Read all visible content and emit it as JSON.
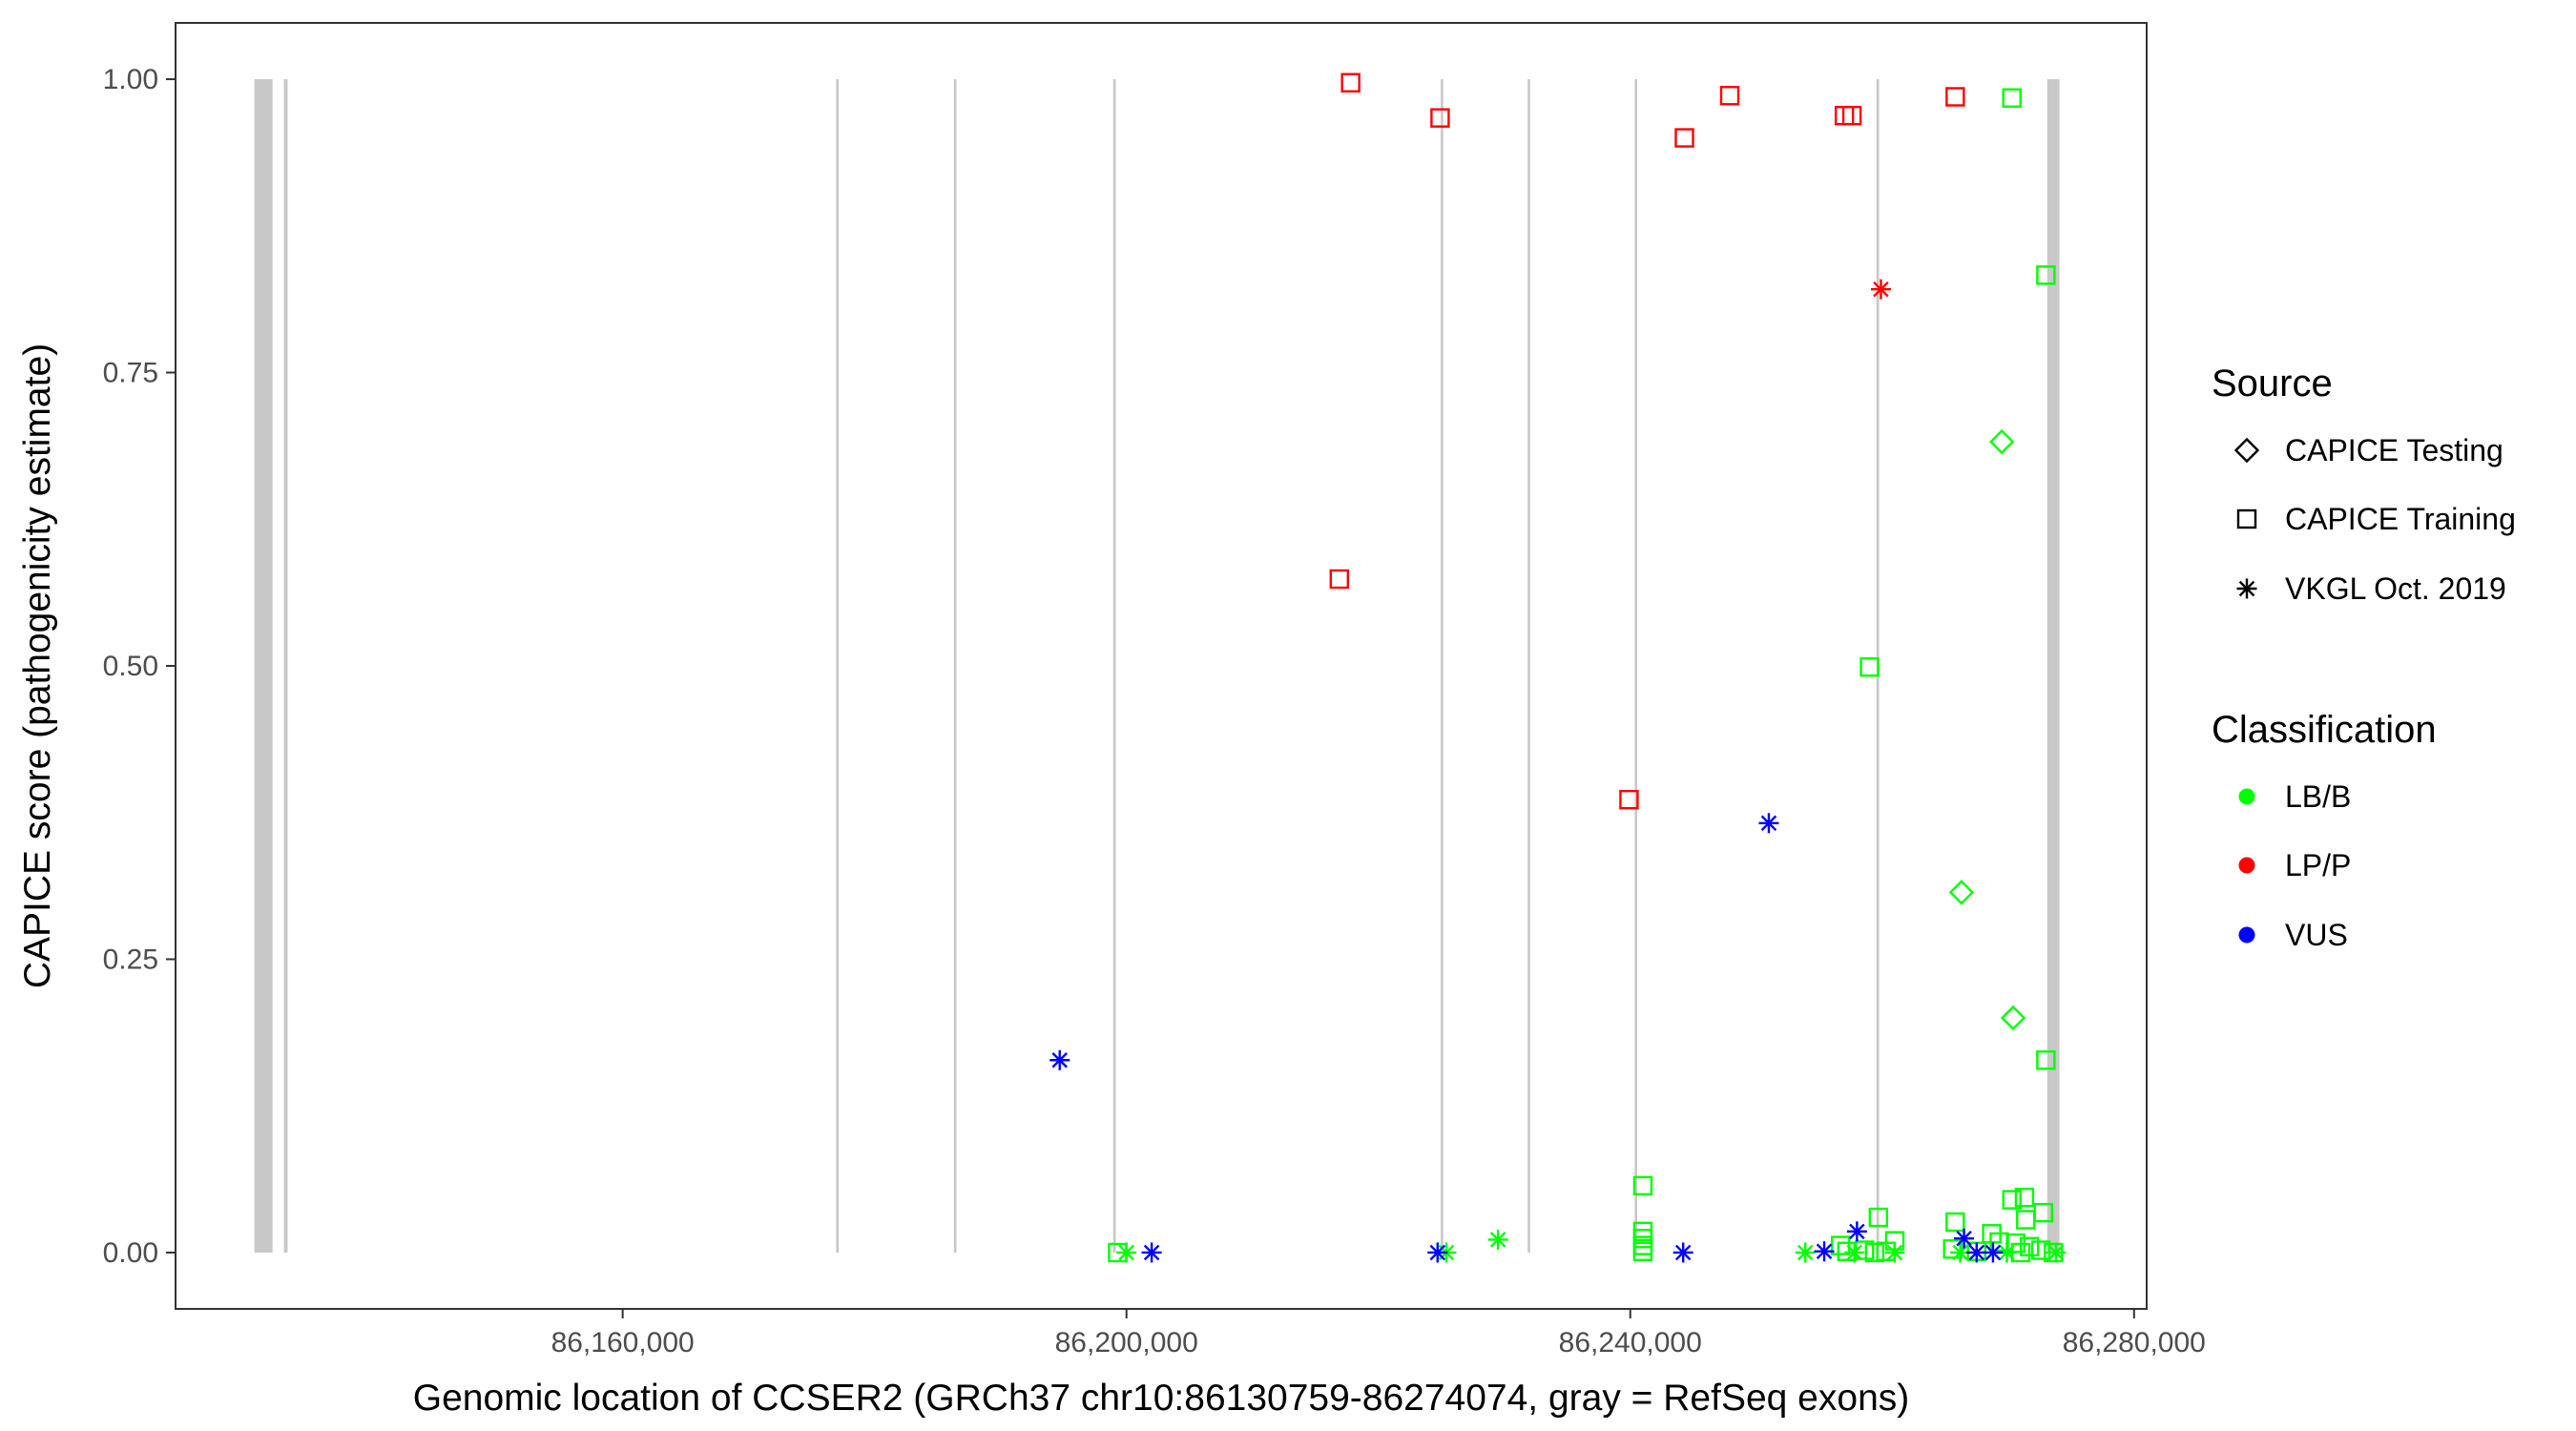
{
  "chart_data": {
    "type": "scatter",
    "xlabel": "Genomic location of CCSER2 (GRCh37 chr10:86130759-86274074, gray = RefSeq exons)",
    "ylabel": "CAPICE score (pathogenicity estimate)",
    "xlim": [
      86124500,
      86281000
    ],
    "ylim": [
      -0.048,
      1.048
    ],
    "x_ticks": [
      86160000,
      86200000,
      86240000,
      86280000
    ],
    "x_tick_labels": [
      "86,160,000",
      "86,200,000",
      "86,240,000",
      "86,280,000"
    ],
    "y_ticks": [
      0,
      0.25,
      0.5,
      0.75,
      1
    ],
    "y_tick_labels": [
      "0.00",
      "0.25",
      "0.50",
      "0.75",
      "1.00"
    ],
    "grid": false,
    "exons": [
      {
        "start": 86130759,
        "end": 86132200
      },
      {
        "start": 86133100,
        "end": 86133400
      },
      {
        "start": 86176950,
        "end": 86177150
      },
      {
        "start": 86186300,
        "end": 86186500
      },
      {
        "start": 86198950,
        "end": 86199150
      },
      {
        "start": 86224950,
        "end": 86225150
      },
      {
        "start": 86231850,
        "end": 86232050
      },
      {
        "start": 86240350,
        "end": 86240550
      },
      {
        "start": 86259550,
        "end": 86259750
      },
      {
        "start": 86273100,
        "end": 86274074
      }
    ],
    "exon_color": "#c8c8c8",
    "legend": {
      "position": "right",
      "source_title": "Source",
      "source_items": [
        {
          "label": "CAPICE Testing",
          "shape": "diamond"
        },
        {
          "label": "CAPICE Training",
          "shape": "square"
        },
        {
          "label": "VKGL Oct. 2019",
          "shape": "asterisk"
        }
      ],
      "class_title": "Classification",
      "class_items": [
        {
          "label": "LB/B",
          "color": "#00ff00"
        },
        {
          "label": "LP/P",
          "color": "#ff0000"
        },
        {
          "label": "VUS",
          "color": "#0000ff"
        }
      ]
    },
    "points": [
      {
        "x": 86217800,
        "y": 0.997,
        "source": "CAPICE Training",
        "class": "LP/P"
      },
      {
        "x": 86224900,
        "y": 0.967,
        "source": "CAPICE Training",
        "class": "LP/P"
      },
      {
        "x": 86244300,
        "y": 0.95,
        "source": "CAPICE Training",
        "class": "LP/P"
      },
      {
        "x": 86247900,
        "y": 0.986,
        "source": "CAPICE Training",
        "class": "LP/P"
      },
      {
        "x": 86257000,
        "y": 0.969,
        "source": "CAPICE Training",
        "class": "LP/P"
      },
      {
        "x": 86257600,
        "y": 0.969,
        "source": "CAPICE Training",
        "class": "LP/P"
      },
      {
        "x": 86265800,
        "y": 0.985,
        "source": "CAPICE Training",
        "class": "LP/P"
      },
      {
        "x": 86216900,
        "y": 0.574,
        "source": "CAPICE Training",
        "class": "LP/P"
      },
      {
        "x": 86239900,
        "y": 0.386,
        "source": "CAPICE Training",
        "class": "LP/P"
      },
      {
        "x": 86259900,
        "y": 0.821,
        "source": "VKGL Oct. 2019",
        "class": "LP/P"
      },
      {
        "x": 86270300,
        "y": 0.984,
        "source": "CAPICE Training",
        "class": "LB/B"
      },
      {
        "x": 86273000,
        "y": 0.833,
        "source": "CAPICE Training",
        "class": "LB/B"
      },
      {
        "x": 86269500,
        "y": 0.691,
        "source": "CAPICE Testing",
        "class": "LB/B"
      },
      {
        "x": 86259000,
        "y": 0.499,
        "source": "CAPICE Training",
        "class": "LB/B"
      },
      {
        "x": 86266300,
        "y": 0.307,
        "source": "CAPICE Testing",
        "class": "LB/B"
      },
      {
        "x": 86270400,
        "y": 0.2,
        "source": "CAPICE Testing",
        "class": "LB/B"
      },
      {
        "x": 86273000,
        "y": 0.164,
        "source": "CAPICE Training",
        "class": "LB/B"
      },
      {
        "x": 86241000,
        "y": 0.057,
        "source": "CAPICE Training",
        "class": "LB/B"
      },
      {
        "x": 86241000,
        "y": 0.018,
        "source": "CAPICE Training",
        "class": "LB/B"
      },
      {
        "x": 86241000,
        "y": 0.012,
        "source": "CAPICE Training",
        "class": "LB/B"
      },
      {
        "x": 86241000,
        "y": 0.006,
        "source": "CAPICE Training",
        "class": "LB/B"
      },
      {
        "x": 86241000,
        "y": 0.001,
        "source": "CAPICE Training",
        "class": "LB/B"
      },
      {
        "x": 86199300,
        "y": 0.0,
        "source": "CAPICE Training",
        "class": "LB/B"
      },
      {
        "x": 86200000,
        "y": 0.0,
        "source": "VKGL Oct. 2019",
        "class": "LB/B"
      },
      {
        "x": 86225400,
        "y": 0.0,
        "source": "VKGL Oct. 2019",
        "class": "LB/B"
      },
      {
        "x": 86229500,
        "y": 0.011,
        "source": "VKGL Oct. 2019",
        "class": "LB/B"
      },
      {
        "x": 86253900,
        "y": 0.0,
        "source": "VKGL Oct. 2019",
        "class": "LB/B"
      },
      {
        "x": 86256700,
        "y": 0.006,
        "source": "CAPICE Training",
        "class": "LB/B"
      },
      {
        "x": 86257200,
        "y": 0.001,
        "source": "CAPICE Training",
        "class": "LB/B"
      },
      {
        "x": 86257800,
        "y": 0.0,
        "source": "VKGL Oct. 2019",
        "class": "LB/B"
      },
      {
        "x": 86258600,
        "y": 0.002,
        "source": "CAPICE Training",
        "class": "LB/B"
      },
      {
        "x": 86259700,
        "y": 0.03,
        "source": "CAPICE Training",
        "class": "LB/B"
      },
      {
        "x": 86259400,
        "y": 0.0,
        "source": "CAPICE Training",
        "class": "LB/B"
      },
      {
        "x": 86260300,
        "y": 0.001,
        "source": "CAPICE Training",
        "class": "LB/B"
      },
      {
        "x": 86261000,
        "y": 0.01,
        "source": "CAPICE Training",
        "class": "LB/B"
      },
      {
        "x": 86261000,
        "y": 0.0,
        "source": "VKGL Oct. 2019",
        "class": "LB/B"
      },
      {
        "x": 86265800,
        "y": 0.026,
        "source": "CAPICE Training",
        "class": "LB/B"
      },
      {
        "x": 86265600,
        "y": 0.003,
        "source": "CAPICE Training",
        "class": "LB/B"
      },
      {
        "x": 86266200,
        "y": 0.0,
        "source": "VKGL Oct. 2019",
        "class": "LB/B"
      },
      {
        "x": 86267500,
        "y": 0.001,
        "source": "CAPICE Training",
        "class": "LB/B"
      },
      {
        "x": 86268700,
        "y": 0.016,
        "source": "CAPICE Training",
        "class": "LB/B"
      },
      {
        "x": 86269300,
        "y": 0.009,
        "source": "CAPICE Training",
        "class": "LB/B"
      },
      {
        "x": 86269900,
        "y": 0.0,
        "source": "VKGL Oct. 2019",
        "class": "LB/B"
      },
      {
        "x": 86270300,
        "y": 0.045,
        "source": "CAPICE Training",
        "class": "LB/B"
      },
      {
        "x": 86270600,
        "y": 0.008,
        "source": "CAPICE Training",
        "class": "LB/B"
      },
      {
        "x": 86271000,
        "y": 0.0,
        "source": "CAPICE Training",
        "class": "LB/B"
      },
      {
        "x": 86271300,
        "y": 0.047,
        "source": "CAPICE Training",
        "class": "LB/B"
      },
      {
        "x": 86271400,
        "y": 0.028,
        "source": "CAPICE Training",
        "class": "LB/B"
      },
      {
        "x": 86271700,
        "y": 0.005,
        "source": "CAPICE Training",
        "class": "LB/B"
      },
      {
        "x": 86272800,
        "y": 0.034,
        "source": "CAPICE Training",
        "class": "LB/B"
      },
      {
        "x": 86272600,
        "y": 0.002,
        "source": "CAPICE Training",
        "class": "LB/B"
      },
      {
        "x": 86273600,
        "y": 0.0,
        "source": "CAPICE Training",
        "class": "LB/B"
      },
      {
        "x": 86273800,
        "y": 0.0,
        "source": "VKGL Oct. 2019",
        "class": "LB/B"
      },
      {
        "x": 86194700,
        "y": 0.164,
        "source": "VKGL Oct. 2019",
        "class": "VUS"
      },
      {
        "x": 86202000,
        "y": 0.0,
        "source": "VKGL Oct. 2019",
        "class": "VUS"
      },
      {
        "x": 86224700,
        "y": 0.0,
        "source": "VKGL Oct. 2019",
        "class": "VUS"
      },
      {
        "x": 86244200,
        "y": 0.0,
        "source": "VKGL Oct. 2019",
        "class": "VUS"
      },
      {
        "x": 86251000,
        "y": 0.366,
        "source": "VKGL Oct. 2019",
        "class": "VUS"
      },
      {
        "x": 86255400,
        "y": 0.001,
        "source": "VKGL Oct. 2019",
        "class": "VUS"
      },
      {
        "x": 86258000,
        "y": 0.018,
        "source": "VKGL Oct. 2019",
        "class": "VUS"
      },
      {
        "x": 86266500,
        "y": 0.012,
        "source": "VKGL Oct. 2019",
        "class": "VUS"
      },
      {
        "x": 86267500,
        "y": 0.0,
        "source": "VKGL Oct. 2019",
        "class": "VUS"
      },
      {
        "x": 86268800,
        "y": 0.0,
        "source": "VKGL Oct. 2019",
        "class": "VUS"
      }
    ]
  }
}
